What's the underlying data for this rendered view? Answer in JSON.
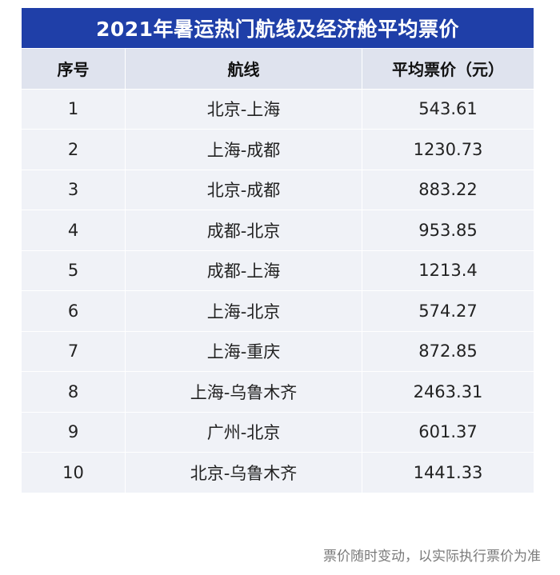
{
  "chart_data": {
    "type": "table",
    "title": "2021年暑运热门航线及经济舱平均票价",
    "columns": [
      "序号",
      "航线",
      "平均票价（元）"
    ],
    "rows": [
      {
        "index": "1",
        "route": "北京-上海",
        "price": "543.61"
      },
      {
        "index": "2",
        "route": "上海-成都",
        "price": "1230.73"
      },
      {
        "index": "3",
        "route": "北京-成都",
        "price": "883.22"
      },
      {
        "index": "4",
        "route": "成都-北京",
        "price": "953.85"
      },
      {
        "index": "5",
        "route": "成都-上海",
        "price": "1213.4"
      },
      {
        "index": "6",
        "route": "上海-北京",
        "price": "574.27"
      },
      {
        "index": "7",
        "route": "上海-重庆",
        "price": "872.85"
      },
      {
        "index": "8",
        "route": "上海-乌鲁木齐",
        "price": "2463.31"
      },
      {
        "index": "9",
        "route": "广州-北京",
        "price": "601.37"
      },
      {
        "index": "10",
        "route": "北京-乌鲁木齐",
        "price": "1441.33"
      }
    ]
  },
  "footer_note": "票价随时变动，以实际执行票价为准",
  "colors": {
    "title_bg": "#1f3fa8",
    "header_bg": "#dfe3ee",
    "row_bg": "#f0f2f7"
  }
}
